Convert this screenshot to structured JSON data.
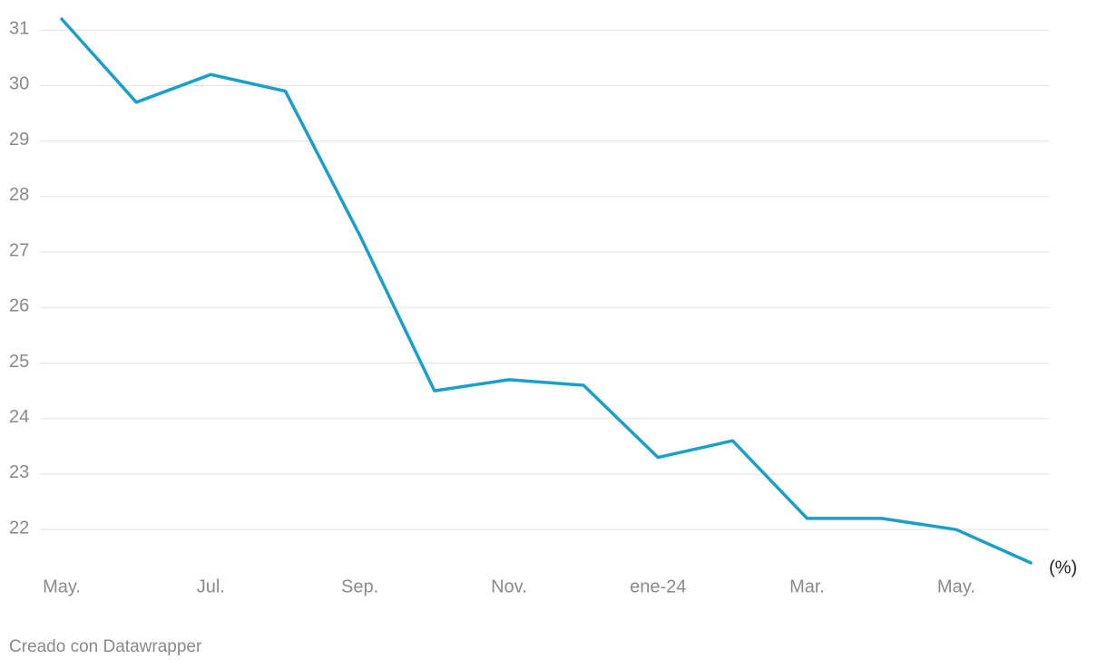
{
  "chart_data": {
    "type": "line",
    "categories": [
      "May.",
      null,
      "Jul.",
      null,
      "Sep.",
      null,
      "Nov.",
      null,
      "ene-24",
      null,
      "Mar.",
      null,
      "May.",
      null
    ],
    "values": [
      31.2,
      29.7,
      30.2,
      29.9,
      27.3,
      24.5,
      24.7,
      24.6,
      23.3,
      23.6,
      22.2,
      22.2,
      22.0,
      21.4
    ],
    "color": "#1a9fcc",
    "ylim": [
      21.3,
      31.2
    ],
    "yticks": [
      22,
      23,
      24,
      25,
      26,
      27,
      28,
      29,
      30,
      31
    ],
    "grid": true,
    "annotation": "(%)",
    "footer": "Creado con Datawrapper"
  }
}
